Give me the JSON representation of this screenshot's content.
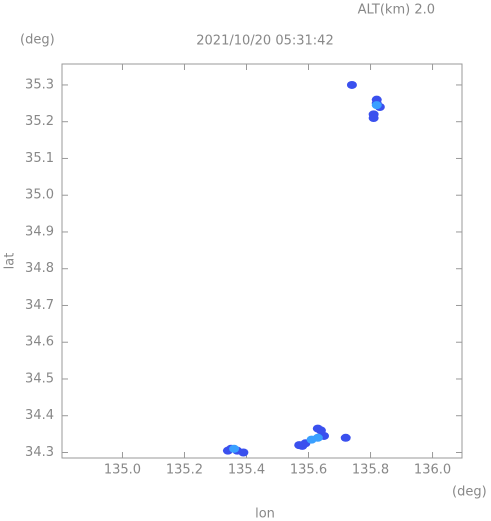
{
  "chart_data": {
    "type": "scatter",
    "title": "2021/10/20 05:31:42",
    "subtitle": "ALT(km) 2.0",
    "x_unit": "(deg)",
    "y_unit": "(deg)",
    "xlabel": "lon",
    "ylabel": "lat",
    "xlim": [
      134.805,
      136.095
    ],
    "ylim": [
      34.285,
      35.357
    ],
    "xticks": [
      {
        "value": 135,
        "label": "135.0"
      },
      135.2,
      135.4,
      135.6,
      135.8,
      {
        "value": 136,
        "label": "136.0"
      }
    ],
    "yticks": [
      34.3,
      34.4,
      34.5,
      34.6,
      34.7,
      34.8,
      34.9,
      {
        "value": 35,
        "label": "35.0"
      },
      35.1,
      35.2,
      35.3
    ],
    "series": [
      {
        "color": "#3a50ee",
        "x": [
          135.74,
          135.82,
          135.83,
          135.81,
          135.82,
          135.81,
          135.35,
          135.37,
          135.39,
          135.34,
          135.57,
          135.59,
          135.64,
          135.65,
          135.58,
          135.72,
          135.63
        ],
        "y": [
          35.3,
          35.25,
          35.24,
          35.22,
          35.26,
          35.21,
          34.31,
          34.305,
          34.3,
          34.305,
          34.32,
          34.325,
          34.36,
          34.345,
          34.318,
          34.34,
          34.365
        ]
      },
      {
        "color": "#3aa0ff",
        "x": [
          135.36,
          135.61,
          135.63,
          135.82
        ],
        "y": [
          34.31,
          34.335,
          34.34,
          35.245
        ]
      }
    ]
  }
}
